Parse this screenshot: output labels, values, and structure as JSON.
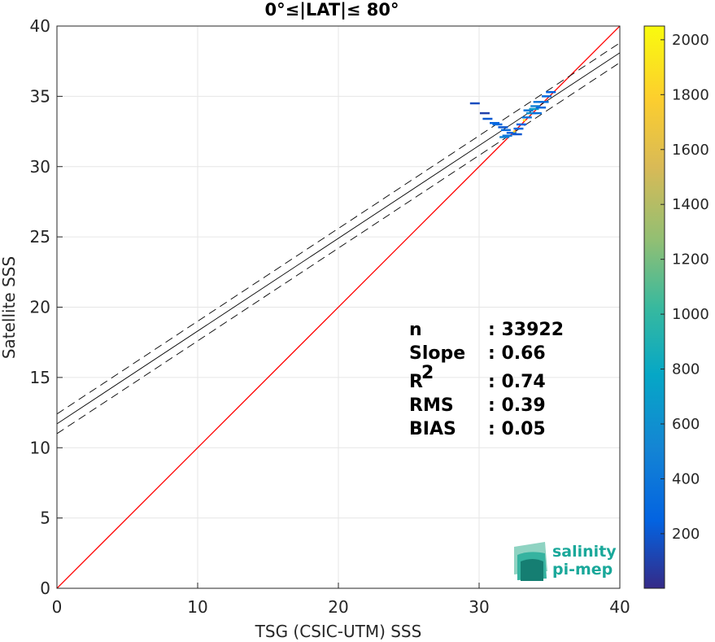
{
  "chart_data": {
    "type": "scatter",
    "title": "0°≤|LAT|≤ 80°",
    "xlabel": "TSG (CSIC-UTM) SSS",
    "ylabel": "Satellite SSS",
    "xlim": [
      0,
      40
    ],
    "ylim": [
      0,
      40
    ],
    "xticks": [
      0,
      10,
      20,
      30,
      40
    ],
    "yticks": [
      0,
      5,
      10,
      15,
      20,
      25,
      30,
      35,
      40
    ],
    "grid": true,
    "reference_line": {
      "x": [
        0,
        40
      ],
      "y": [
        0,
        40
      ],
      "color": "#ff0000"
    },
    "regression_line": {
      "slope": 0.66,
      "intercept": 11.7,
      "color": "#000000"
    },
    "confidence_band": {
      "offset": 0.7,
      "style": "dashed",
      "color": "#000000"
    },
    "density_points": [
      {
        "x": 29.7,
        "y": 34.5,
        "count": 150
      },
      {
        "x": 30.4,
        "y": 33.8,
        "count": 100
      },
      {
        "x": 30.6,
        "y": 33.4,
        "count": 200
      },
      {
        "x": 31.1,
        "y": 33.1,
        "count": 250
      },
      {
        "x": 31.3,
        "y": 33.0,
        "count": 300
      },
      {
        "x": 31.7,
        "y": 32.8,
        "count": 200
      },
      {
        "x": 31.8,
        "y": 32.1,
        "count": 500
      },
      {
        "x": 31.9,
        "y": 32.6,
        "count": 300
      },
      {
        "x": 32.0,
        "y": 32.2,
        "count": 400
      },
      {
        "x": 32.3,
        "y": 32.4,
        "count": 250
      },
      {
        "x": 32.7,
        "y": 32.3,
        "count": 200
      },
      {
        "x": 32.8,
        "y": 32.7,
        "count": 300
      },
      {
        "x": 33.0,
        "y": 33.0,
        "count": 250
      },
      {
        "x": 33.4,
        "y": 33.5,
        "count": 400
      },
      {
        "x": 33.5,
        "y": 34.0,
        "count": 400
      },
      {
        "x": 33.7,
        "y": 33.8,
        "count": 600
      },
      {
        "x": 33.9,
        "y": 34.1,
        "count": 700
      },
      {
        "x": 34.0,
        "y": 34.3,
        "count": 500
      },
      {
        "x": 34.1,
        "y": 33.8,
        "count": 350
      },
      {
        "x": 34.2,
        "y": 34.6,
        "count": 400
      },
      {
        "x": 34.4,
        "y": 34.2,
        "count": 300
      },
      {
        "x": 34.6,
        "y": 34.6,
        "count": 350
      },
      {
        "x": 34.8,
        "y": 35.0,
        "count": 300
      },
      {
        "x": 35.1,
        "y": 35.3,
        "count": 250
      },
      {
        "x": 32.5,
        "y": 32.5,
        "count": 1800
      },
      {
        "x": 33.2,
        "y": 33.3,
        "count": 1900
      }
    ],
    "colorbar": {
      "min": 1,
      "max": 2050,
      "ticks": [
        200,
        400,
        600,
        800,
        1000,
        1200,
        1400,
        1600,
        1800,
        2000
      ],
      "colormap": "parula"
    },
    "stats": [
      {
        "name": "n",
        "value": ": 33922"
      },
      {
        "name": "Slope",
        "value": ": 0.66"
      },
      {
        "name": "R",
        "sup": "2",
        "value": ": 0.74"
      },
      {
        "name": "RMS",
        "value": ": 0.39"
      },
      {
        "name": "BIAS",
        "value": ": 0.05"
      }
    ]
  },
  "logo": {
    "line1": "salinity",
    "line2": "pi-mep"
  },
  "colors": {
    "reference": "#ff0000",
    "fit": "#000000",
    "logo": "#1aa89a"
  }
}
